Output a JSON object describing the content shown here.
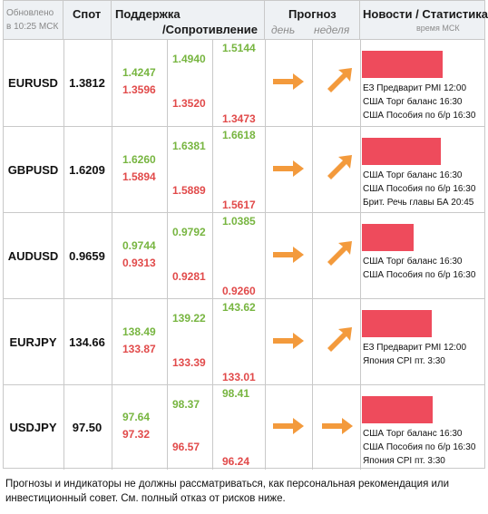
{
  "header": {
    "updated": "Обновлено в 10:25 МСК",
    "spot": "Спот",
    "support": "Поддержка",
    "resistance": "/Сопротивление",
    "forecast": "Прогноз",
    "day": "день",
    "week": "неделя",
    "news": "Новости / Статистика",
    "time": "время МСК"
  },
  "rows": [
    {
      "pair": "EURUSD",
      "spot": "1.3812",
      "s1": "1.4247",
      "s2": "1.3596",
      "s3": "1.4940",
      "s4": "1.3520",
      "s5": "1.5144",
      "s6": "1.3473",
      "day": "arrow-right-icon",
      "week": "arrow-up-right-icon",
      "bar_level": 0.85,
      "news": [
        "ЕЗ Предварит PMI 12:00",
        "США Торг баланс 16:30",
        "США Пособия по б/р 16:30"
      ]
    },
    {
      "pair": "GBPUSD",
      "spot": "1.6209",
      "s1": "1.6260",
      "s2": "1.5894",
      "s3": "1.6381",
      "s4": "1.5889",
      "s5": "1.6618",
      "s6": "1.5617",
      "day": "arrow-right-icon",
      "week": "arrow-up-right-icon",
      "bar_level": 0.83,
      "news": [
        "США Торг баланс 16:30",
        "США Пособия по б/р 16:30",
        "Брит. Речь главы БА 20:45"
      ]
    },
    {
      "pair": "AUDUSD",
      "spot": "0.9659",
      "s1": "0.9744",
      "s2": "0.9313",
      "s3": "0.9792",
      "s4": "0.9281",
      "s5": "1.0385",
      "s6": "0.9260",
      "day": "arrow-right-icon",
      "week": "arrow-up-right-icon",
      "bar_level": 0.54,
      "news": [
        "США Торг баланс 16:30",
        "США Пособия по б/р 16:30"
      ]
    },
    {
      "pair": "EURJPY",
      "spot": "134.66",
      "s1": "138.49",
      "s2": "133.87",
      "s3": "139.22",
      "s4": "133.39",
      "s5": "143.62",
      "s6": "133.01",
      "day": "arrow-right-icon",
      "week": "arrow-up-right-icon",
      "bar_level": 0.73,
      "news": [
        "ЕЗ Предварит PMI 12:00",
        "Япония CPI пт. 3:30"
      ]
    },
    {
      "pair": "USDJPY",
      "spot": "97.50",
      "s1": "97.64",
      "s2": "97.32",
      "s3": "98.37",
      "s4": "96.57",
      "s5": "98.41",
      "s6": "96.24",
      "day": "arrow-right-icon",
      "week": "arrow-right-icon",
      "bar_level": 0.74,
      "news": [
        "США Торг баланс 16:30",
        "США Пособия по б/р 16:30",
        "Япония CPI пт. 3:30"
      ]
    }
  ],
  "colors": {
    "support": "#77b540",
    "resistance": "#e14a4a",
    "arrow": "#f39a3c",
    "bar": "#ee4b5c"
  },
  "disclaimer": "Прогнозы и индикаторы не должны рассматриваться, как персональная рекомендация или инвестиционный совет. См. полный отказ от рисков ниже."
}
